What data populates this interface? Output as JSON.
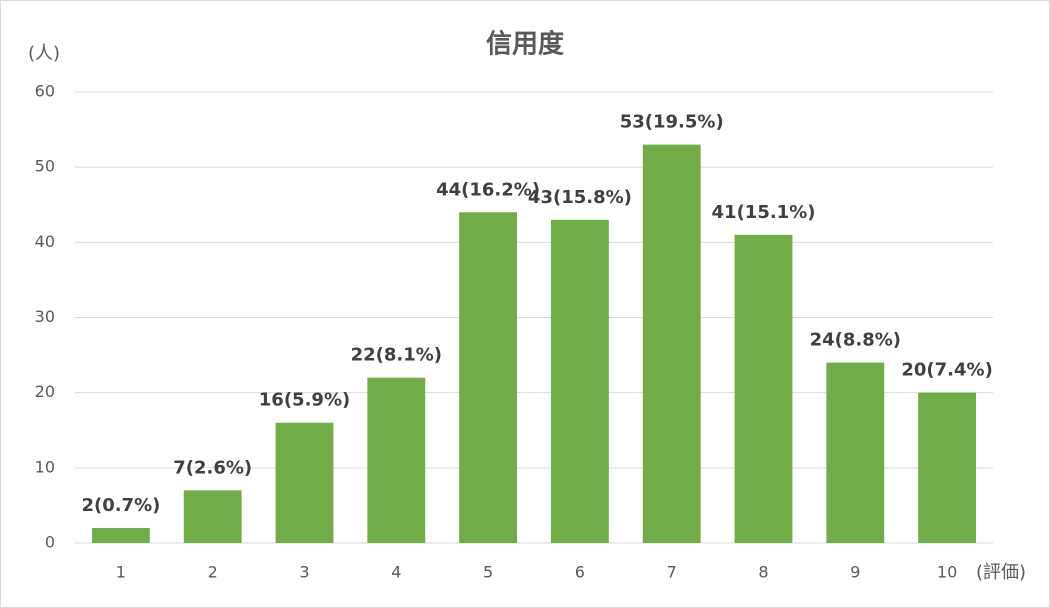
{
  "chart_data": {
    "type": "bar",
    "title": "信用度",
    "y_label": "(人)",
    "x_label": "(評価)",
    "categories": [
      "1",
      "2",
      "3",
      "4",
      "5",
      "6",
      "7",
      "8",
      "9",
      "10"
    ],
    "values": [
      2,
      7,
      16,
      22,
      44,
      43,
      53,
      41,
      24,
      20
    ],
    "value_labels": [
      "2(0.7%)",
      "7(2.6%)",
      "16(5.9%)",
      "22(8.1%)",
      "44(16.2%)",
      "43(15.8%)",
      "53(19.5%)",
      "41(15.1%)",
      "24(8.8%)",
      "20(7.4%)"
    ],
    "color": "#70ad47",
    "ylim": [
      0,
      60
    ],
    "yticks": [
      0,
      10,
      20,
      30,
      40,
      50,
      60
    ],
    "grid": true
  }
}
